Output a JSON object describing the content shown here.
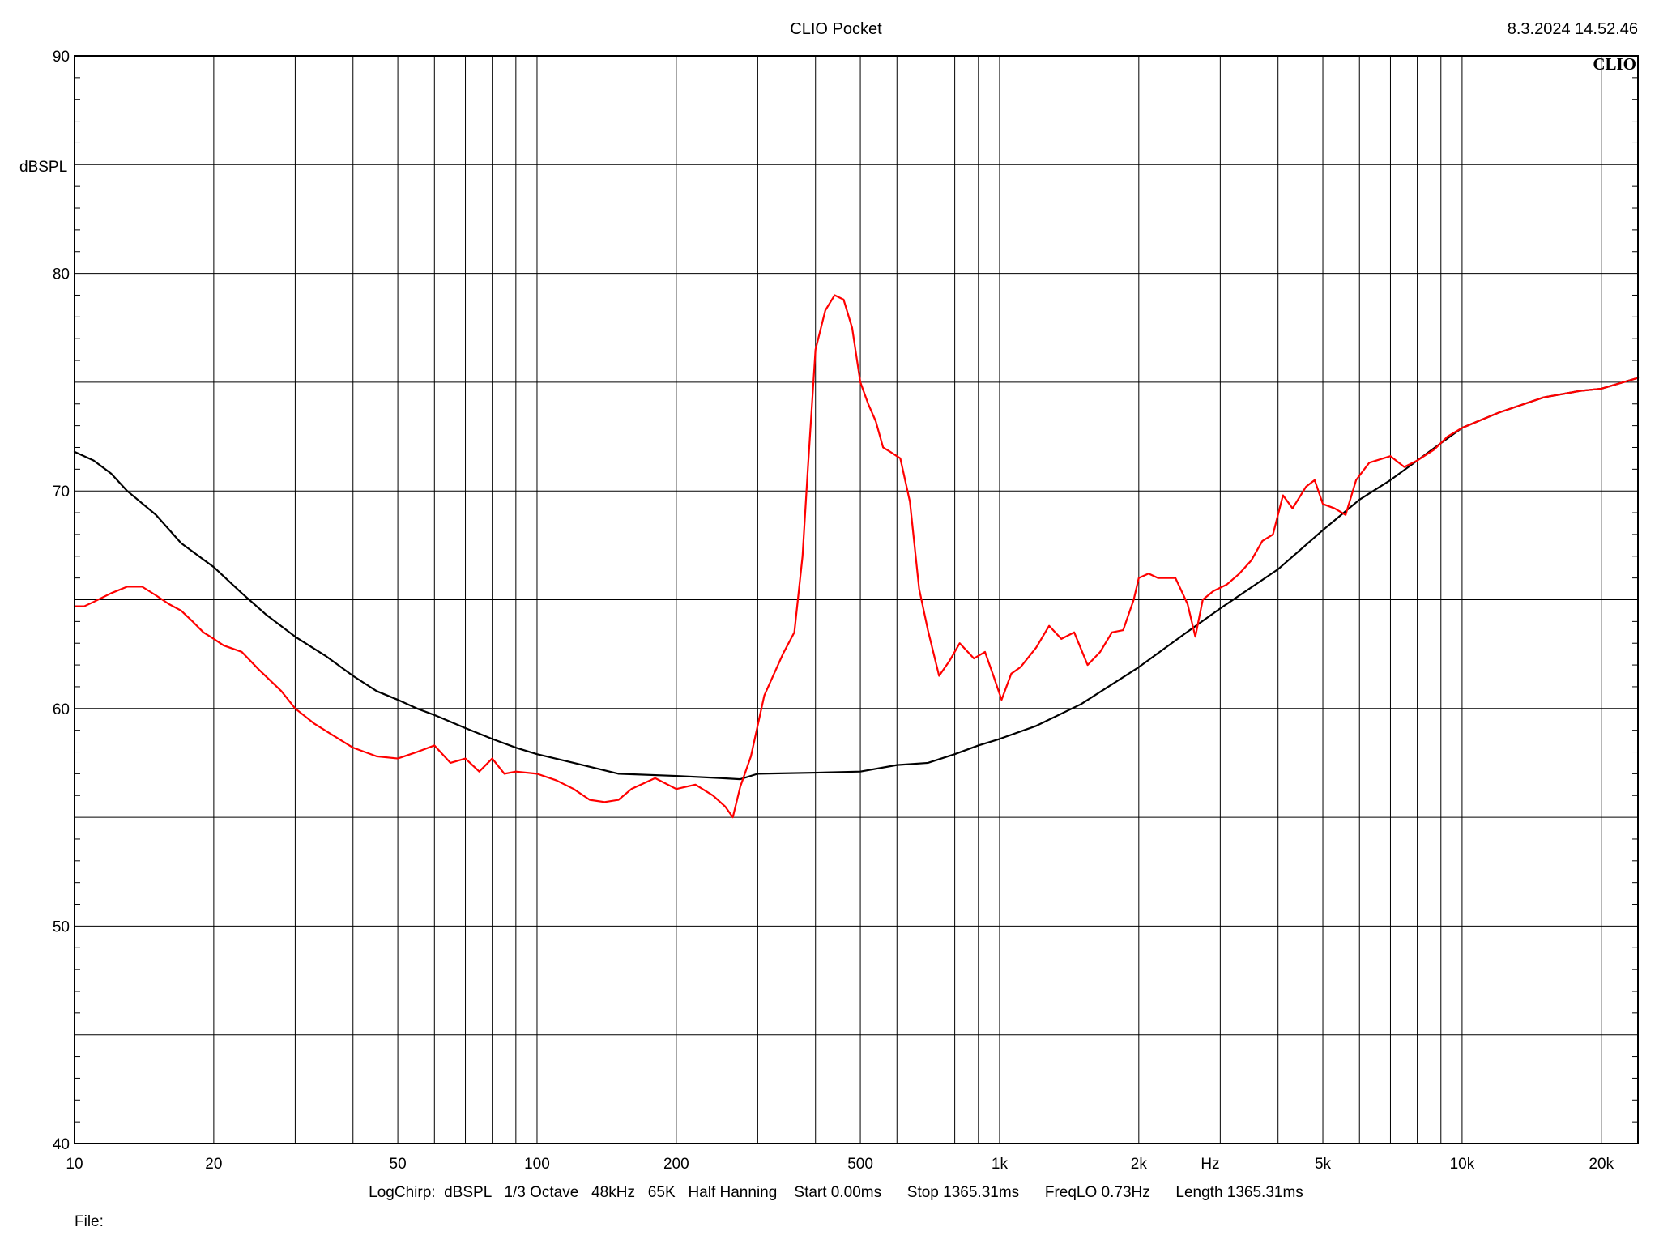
{
  "header": {
    "title": "CLIO Pocket",
    "timestamp": "8.3.2024 14.52.46",
    "logo": "CLIO"
  },
  "footer": {
    "settings": "LogChirp:  dBSPL   1/3 Octave   48kHz   65K   Half Hanning    Start 0.00ms      Stop 1365.31ms      FreqLO 0.73Hz      Length 1365.31ms",
    "file_label": "File:"
  },
  "chart_data": {
    "type": "line",
    "title": "CLIO Pocket",
    "xlabel": "Hz",
    "ylabel": "dBSPL",
    "xscale": "log",
    "xlim": [
      10,
      24000
    ],
    "ylim": [
      40,
      90
    ],
    "grid": true,
    "x_ticks": [
      {
        "value": 10,
        "label": "10"
      },
      {
        "value": 20,
        "label": "20"
      },
      {
        "value": 50,
        "label": "50"
      },
      {
        "value": 100,
        "label": "100"
      },
      {
        "value": 200,
        "label": "200"
      },
      {
        "value": 500,
        "label": "500"
      },
      {
        "value": 1000,
        "label": "1k"
      },
      {
        "value": 2000,
        "label": "2k"
      },
      {
        "value": 5000,
        "label": "5k"
      },
      {
        "value": 10000,
        "label": "10k"
      },
      {
        "value": 20000,
        "label": "20k"
      }
    ],
    "y_ticks": [
      {
        "value": 40,
        "label": "40"
      },
      {
        "value": 50,
        "label": "50"
      },
      {
        "value": 60,
        "label": "60"
      },
      {
        "value": 70,
        "label": "70"
      },
      {
        "value": 80,
        "label": "80"
      },
      {
        "value": 90,
        "label": "90"
      }
    ],
    "series": [
      {
        "color": "#000000",
        "points": [
          [
            10,
            71.8
          ],
          [
            11,
            71.4
          ],
          [
            12,
            70.8
          ],
          [
            13,
            70.0
          ],
          [
            15,
            68.9
          ],
          [
            17,
            67.6
          ],
          [
            20,
            66.5
          ],
          [
            23,
            65.3
          ],
          [
            26,
            64.3
          ],
          [
            30,
            63.3
          ],
          [
            35,
            62.4
          ],
          [
            40,
            61.5
          ],
          [
            45,
            60.8
          ],
          [
            50,
            60.4
          ],
          [
            55,
            60.0
          ],
          [
            60,
            59.7
          ],
          [
            70,
            59.1
          ],
          [
            80,
            58.6
          ],
          [
            90,
            58.2
          ],
          [
            100,
            57.9
          ],
          [
            120,
            57.5
          ],
          [
            150,
            57.0
          ],
          [
            200,
            56.9
          ],
          [
            250,
            56.8
          ],
          [
            275,
            56.75
          ],
          [
            300,
            57.0
          ],
          [
            400,
            57.05
          ],
          [
            500,
            57.1
          ],
          [
            600,
            57.4
          ],
          [
            700,
            57.5
          ],
          [
            800,
            57.9
          ],
          [
            900,
            58.3
          ],
          [
            1000,
            58.6
          ],
          [
            1200,
            59.2
          ],
          [
            1500,
            60.2
          ],
          [
            2000,
            61.9
          ],
          [
            2500,
            63.4
          ],
          [
            3000,
            64.6
          ],
          [
            4000,
            66.4
          ],
          [
            5000,
            68.2
          ],
          [
            6000,
            69.6
          ],
          [
            7000,
            70.5
          ],
          [
            8000,
            71.4
          ],
          [
            9000,
            72.2
          ],
          [
            10000,
            72.9
          ],
          [
            12000,
            73.6
          ],
          [
            15000,
            74.3
          ],
          [
            18000,
            74.6
          ],
          [
            20000,
            74.7
          ],
          [
            24000,
            75.2
          ]
        ]
      },
      {
        "color": "#ff0000",
        "points": [
          [
            10,
            64.7
          ],
          [
            10.5,
            64.7
          ],
          [
            11,
            64.9
          ],
          [
            12,
            65.3
          ],
          [
            13,
            65.6
          ],
          [
            14,
            65.6
          ],
          [
            15,
            65.2
          ],
          [
            16,
            64.8
          ],
          [
            17,
            64.5
          ],
          [
            18,
            64.0
          ],
          [
            19,
            63.5
          ],
          [
            20,
            63.2
          ],
          [
            21,
            62.9
          ],
          [
            23,
            62.6
          ],
          [
            25,
            61.8
          ],
          [
            28,
            60.8
          ],
          [
            30,
            60.0
          ],
          [
            33,
            59.3
          ],
          [
            36,
            58.8
          ],
          [
            40,
            58.2
          ],
          [
            45,
            57.8
          ],
          [
            50,
            57.7
          ],
          [
            55,
            58.0
          ],
          [
            60,
            58.3
          ],
          [
            65,
            57.5
          ],
          [
            70,
            57.7
          ],
          [
            75,
            57.1
          ],
          [
            80,
            57.7
          ],
          [
            85,
            57.0
          ],
          [
            90,
            57.1
          ],
          [
            100,
            57.0
          ],
          [
            110,
            56.7
          ],
          [
            120,
            56.3
          ],
          [
            130,
            55.8
          ],
          [
            140,
            55.7
          ],
          [
            150,
            55.8
          ],
          [
            160,
            56.3
          ],
          [
            180,
            56.8
          ],
          [
            200,
            56.3
          ],
          [
            220,
            56.5
          ],
          [
            240,
            56.0
          ],
          [
            255,
            55.5
          ],
          [
            265,
            55.0
          ],
          [
            275,
            56.4
          ],
          [
            290,
            57.8
          ],
          [
            310,
            60.6
          ],
          [
            340,
            62.5
          ],
          [
            360,
            63.5
          ],
          [
            375,
            67.0
          ],
          [
            385,
            71.0
          ],
          [
            400,
            76.5
          ],
          [
            420,
            78.3
          ],
          [
            440,
            79.0
          ],
          [
            460,
            78.8
          ],
          [
            480,
            77.5
          ],
          [
            500,
            75.0
          ],
          [
            520,
            74.0
          ],
          [
            540,
            73.2
          ],
          [
            560,
            72.0
          ],
          [
            580,
            71.8
          ],
          [
            610,
            71.5
          ],
          [
            640,
            69.5
          ],
          [
            670,
            65.5
          ],
          [
            700,
            63.6
          ],
          [
            740,
            61.5
          ],
          [
            780,
            62.2
          ],
          [
            820,
            63.0
          ],
          [
            880,
            62.3
          ],
          [
            930,
            62.6
          ],
          [
            970,
            61.5
          ],
          [
            1010,
            60.4
          ],
          [
            1060,
            61.6
          ],
          [
            1110,
            61.9
          ],
          [
            1200,
            62.8
          ],
          [
            1280,
            63.8
          ],
          [
            1360,
            63.2
          ],
          [
            1450,
            63.5
          ],
          [
            1550,
            62.0
          ],
          [
            1650,
            62.6
          ],
          [
            1750,
            63.5
          ],
          [
            1850,
            63.6
          ],
          [
            1950,
            65.0
          ],
          [
            2000,
            66.0
          ],
          [
            2100,
            66.2
          ],
          [
            2200,
            66.0
          ],
          [
            2400,
            66.0
          ],
          [
            2550,
            64.8
          ],
          [
            2650,
            63.3
          ],
          [
            2750,
            65.0
          ],
          [
            2900,
            65.4
          ],
          [
            3100,
            65.7
          ],
          [
            3300,
            66.2
          ],
          [
            3500,
            66.8
          ],
          [
            3700,
            67.7
          ],
          [
            3900,
            68.0
          ],
          [
            4100,
            69.8
          ],
          [
            4300,
            69.2
          ],
          [
            4600,
            70.2
          ],
          [
            4800,
            70.5
          ],
          [
            5000,
            69.4
          ],
          [
            5300,
            69.2
          ],
          [
            5600,
            68.9
          ],
          [
            5900,
            70.5
          ],
          [
            6300,
            71.3
          ],
          [
            7000,
            71.6
          ],
          [
            7500,
            71.1
          ],
          [
            8000,
            71.4
          ],
          [
            8700,
            71.9
          ],
          [
            9300,
            72.5
          ],
          [
            10000,
            72.9
          ],
          [
            12000,
            73.6
          ],
          [
            15000,
            74.3
          ],
          [
            18000,
            74.6
          ],
          [
            20000,
            74.7
          ],
          [
            24000,
            75.2
          ]
        ]
      }
    ]
  }
}
